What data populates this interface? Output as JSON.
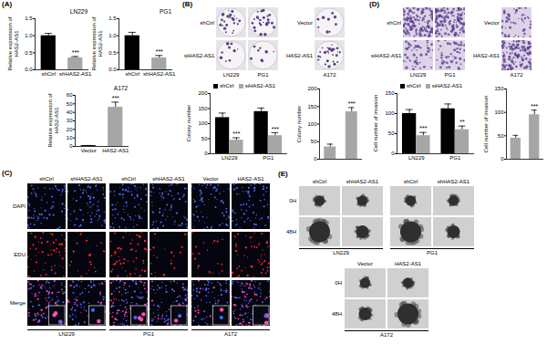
{
  "chart_data": [
    {
      "type": "bar",
      "title": "LN229",
      "y_label": "Relative expression of HAS2-AS1",
      "categories": [
        "shCtrl",
        "shHAS2-AS1"
      ],
      "values": [
        1.0,
        0.35
      ],
      "errors": [
        0.07,
        0.04
      ],
      "significance": [
        null,
        "***"
      ],
      "colors": [
        "#000000",
        "#a6a6a6"
      ],
      "ylim": [
        0,
        1.5
      ],
      "yticks": [
        {
          "value": 0,
          "label": "0.0"
        },
        0.5,
        {
          "value": 1,
          "label": "1.0"
        },
        1.5
      ]
    },
    {
      "type": "bar",
      "title": "PG1",
      "y_label": "Relative expression of HAS2-AS1",
      "categories": [
        "shCtrl",
        "shHAS2-AS1"
      ],
      "values": [
        1.0,
        0.35
      ],
      "errors": [
        0.1,
        0.07
      ],
      "significance": [
        null,
        "***"
      ],
      "colors": [
        "#000000",
        "#a6a6a6"
      ],
      "ylim": [
        0,
        1.5
      ],
      "yticks": [
        {
          "value": 0,
          "label": "0.0"
        },
        0.5,
        {
          "value": 1,
          "label": "1.0"
        },
        1.5
      ]
    },
    {
      "type": "bar",
      "title": "A172",
      "y_label": "Relative expression of HAS2-AS1",
      "categories": [
        "Vector",
        "HAS2-AS1"
      ],
      "values": [
        1.0,
        46
      ],
      "errors": [
        0.15,
        6
      ],
      "significance": [
        null,
        "***"
      ],
      "colors": [
        "#000000",
        "#a6a6a6"
      ],
      "ylim": [
        0,
        60
      ],
      "yticks": [
        0,
        10,
        20,
        30,
        40,
        50,
        60
      ]
    },
    {
      "type": "bar",
      "y_label": "Colony number",
      "categories": [
        "LN229",
        "PG1"
      ],
      "series": [
        {
          "name": "shCtrl",
          "color": "#000000",
          "values": [
            120,
            140
          ],
          "errors": [
            15,
            12
          ]
        },
        {
          "name": "siHAS2-AS1",
          "color": "#a6a6a6",
          "values": [
            45,
            60
          ],
          "errors": [
            8,
            10
          ],
          "significance": [
            "***",
            "***"
          ]
        }
      ],
      "ylim": [
        0,
        200
      ],
      "yticks": [
        0,
        50,
        100,
        150,
        200
      ],
      "legend": "top"
    },
    {
      "type": "bar",
      "y_label": "Colony number",
      "categories": [
        null,
        null
      ],
      "values": [
        35,
        135
      ],
      "errors": [
        8,
        12
      ],
      "significance": [
        null,
        "***"
      ],
      "colors": [
        "#a6a6a6",
        "#a6a6a6"
      ],
      "ylim": [
        0,
        200
      ],
      "yticks": [
        0,
        50,
        100,
        150,
        200
      ]
    },
    {
      "type": "bar",
      "y_label": "Cell number of invasion",
      "categories": [
        "LN229",
        "PG1"
      ],
      "series": [
        {
          "name": "shCtrl",
          "color": "#000000",
          "values": [
            100,
            112
          ],
          "errors": [
            10,
            12
          ]
        },
        {
          "name": "siHAS2-AS1",
          "color": "#a6a6a6",
          "values": [
            45,
            60
          ],
          "errors": [
            8,
            9
          ],
          "significance": [
            "***",
            "**"
          ]
        }
      ],
      "ylim": [
        0,
        150
      ],
      "yticks": [
        0,
        50,
        100,
        150
      ],
      "legend": "top"
    },
    {
      "type": "bar",
      "y_label": "Cell number of invasion",
      "categories": [
        null,
        null
      ],
      "values": [
        45,
        95
      ],
      "errors": [
        6,
        10
      ],
      "significance": [
        null,
        "***"
      ],
      "colors": [
        "#a6a6a6",
        "#a6a6a6"
      ],
      "ylim": [
        0,
        150
      ],
      "yticks": [
        0,
        50,
        100,
        150
      ]
    }
  ],
  "figure": {
    "panel_labels": [
      "(A)",
      "(B)",
      "(C)",
      "(D)",
      "(E)"
    ],
    "B_images": [
      {
        "row_labels": [
          "shCtrl",
          "siHAS2-AS1"
        ],
        "col_labels": [
          "LN229",
          "PG1"
        ]
      },
      {
        "row_labels": [
          "Vector",
          "HAS2-AS1"
        ],
        "col_labels": [
          "A172"
        ]
      }
    ],
    "C_images": {
      "row_labels": [
        "DAPI",
        "EDU",
        "Merge"
      ],
      "groups": [
        {
          "name": "LN229",
          "columns": [
            "shCtrl",
            "shHAS2-AS1"
          ]
        },
        {
          "name": "PG1",
          "columns": [
            "shCtrl",
            "shHAS2-AS1"
          ]
        },
        {
          "name": "A172",
          "columns": [
            "Vector",
            "HAS2-AS1"
          ]
        }
      ]
    },
    "D_images": [
      {
        "row_labels": [
          "shCtrl",
          "siHAS2-AS1"
        ],
        "col_labels": [
          "LN229",
          "PG1"
        ]
      },
      {
        "row_labels": [
          "Vector",
          "HAS2-AS1"
        ],
        "col_labels": [
          "A172"
        ]
      }
    ],
    "E_images": {
      "row_labels": [
        "0H",
        "48H"
      ],
      "groups": [
        {
          "name": "LN229",
          "columns": [
            "shCtrl",
            "shHAS2-AS1"
          ]
        },
        {
          "name": "PG1",
          "columns": [
            "shCtrl",
            "shHAS2-AS1"
          ]
        },
        {
          "name": "A172",
          "columns": [
            "Vector",
            "HAS2-AS1"
          ]
        }
      ]
    }
  }
}
